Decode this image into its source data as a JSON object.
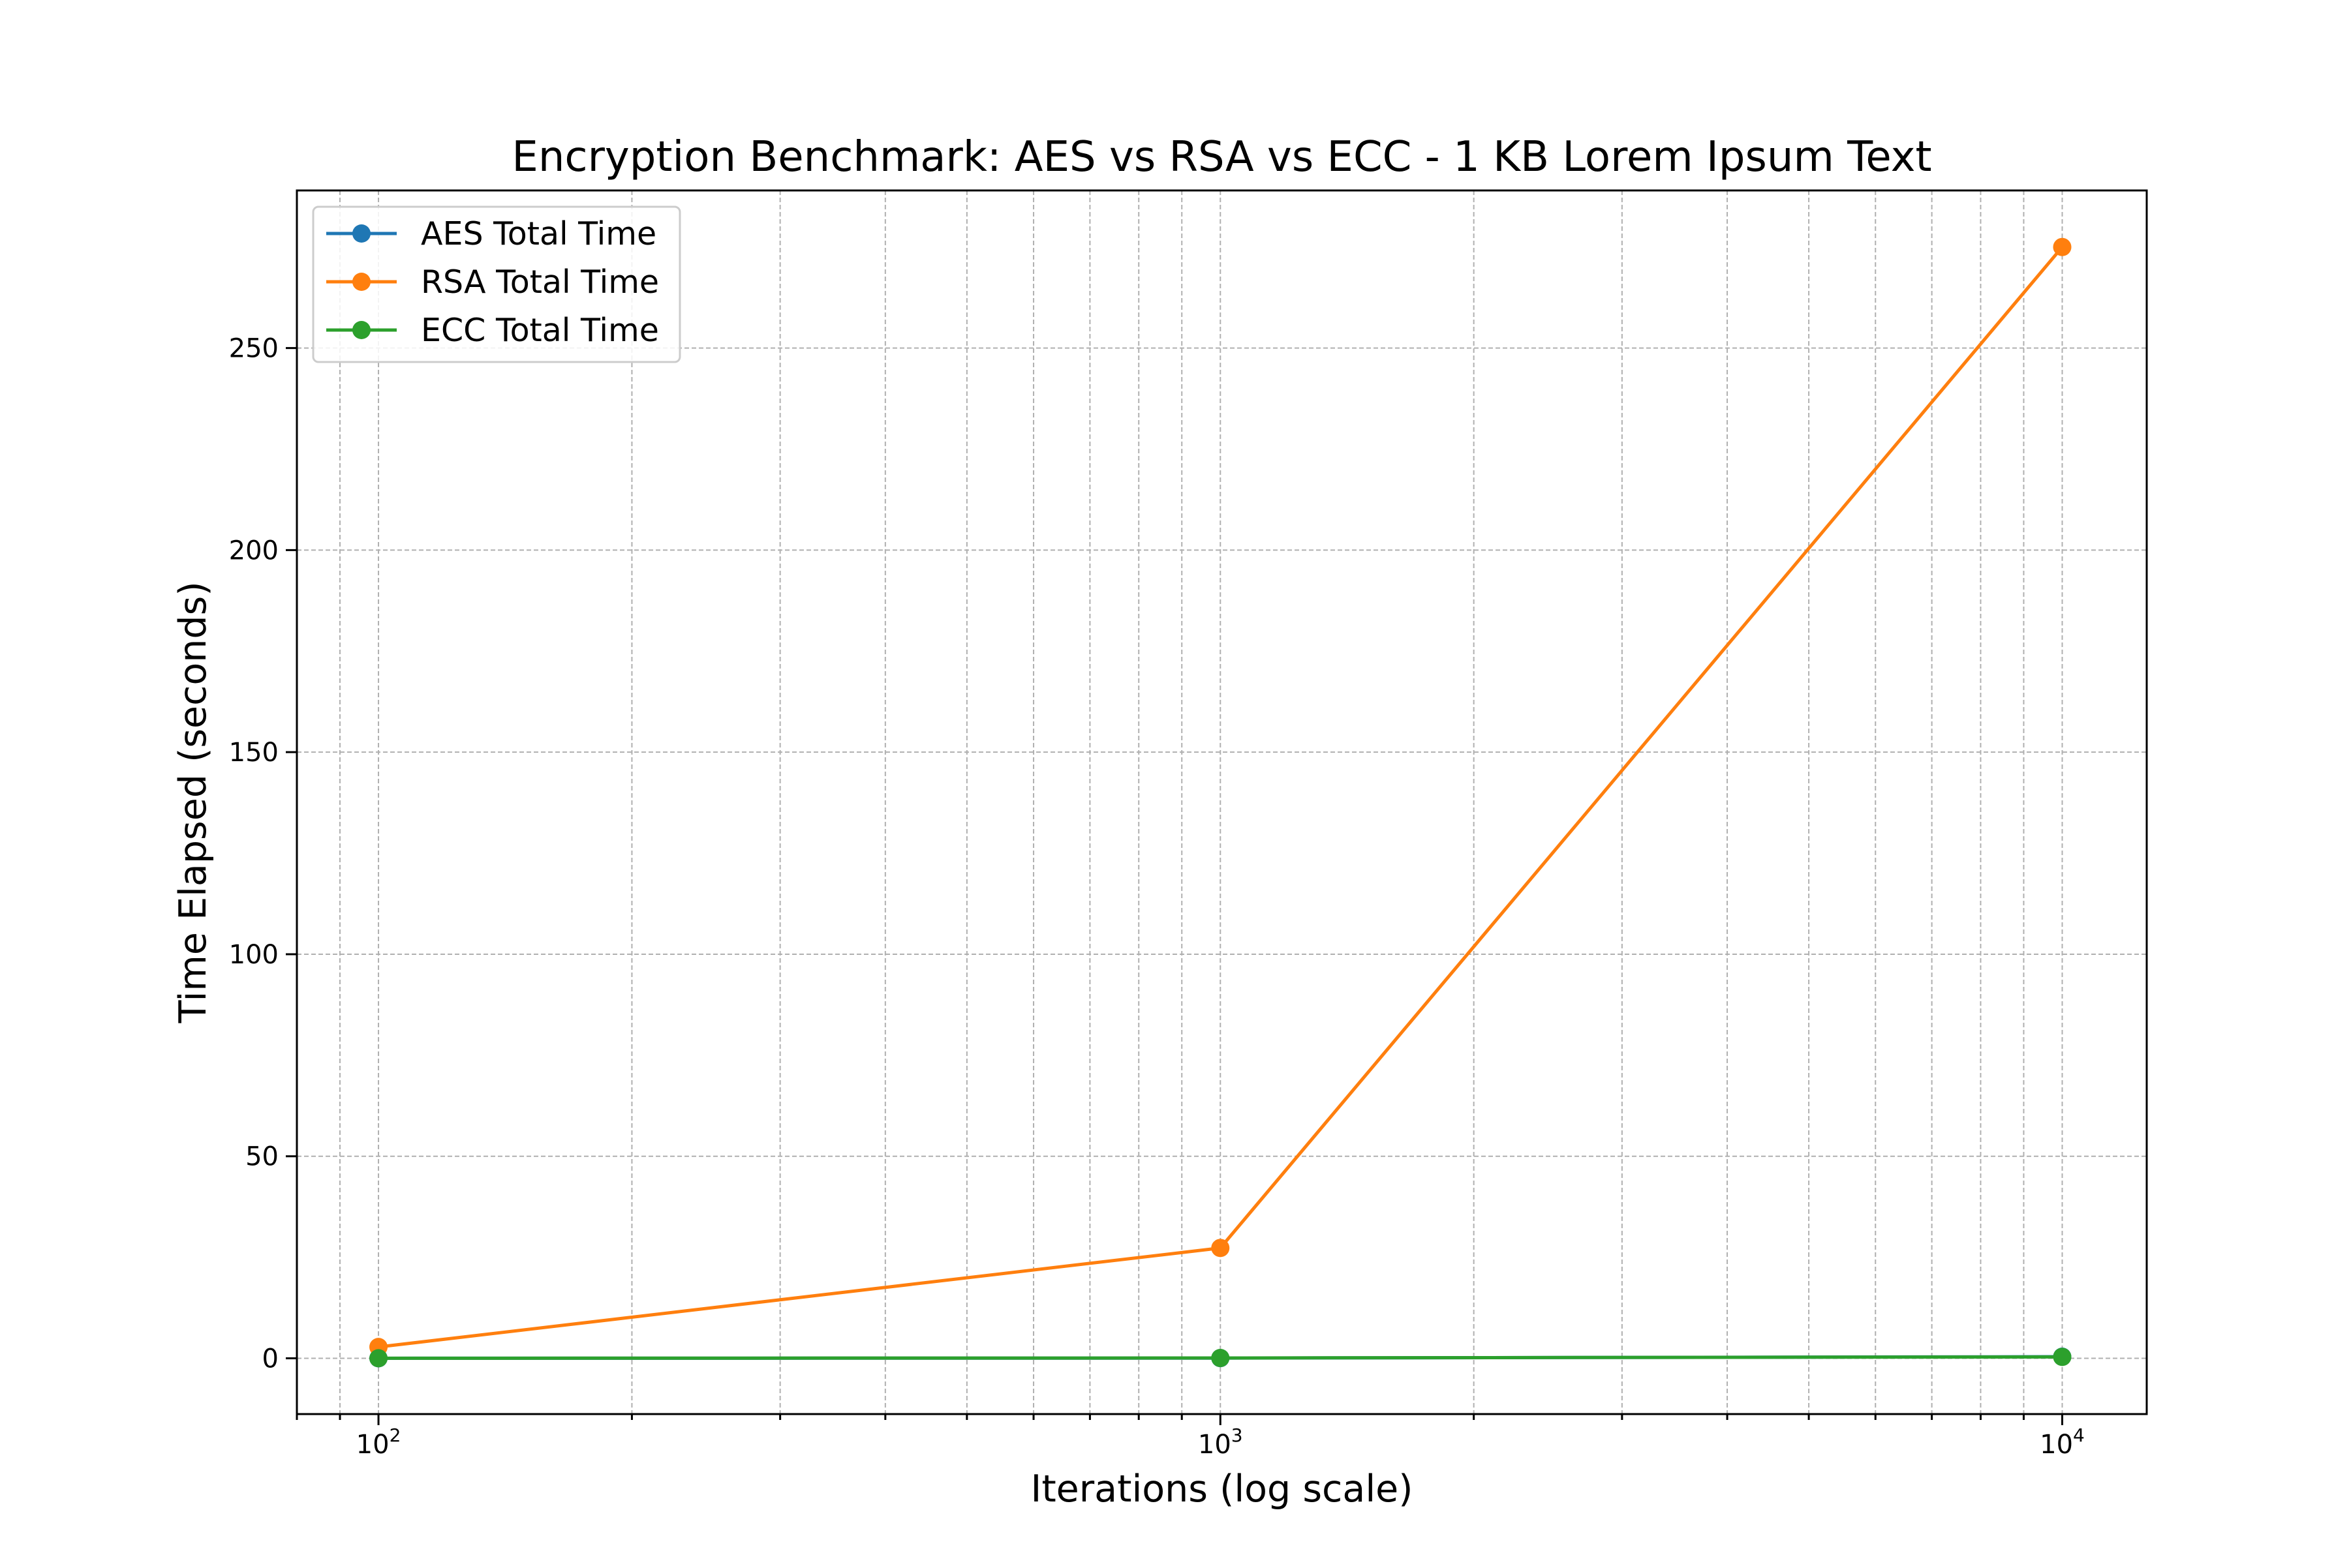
{
  "chart_data": {
    "type": "line",
    "title": "Encryption Benchmark: AES vs RSA vs ECC - 1 KB Lorem Ipsum Text",
    "xlabel": "Iterations (log scale)",
    "ylabel": "Time Elapsed (seconds)",
    "x_scale": "log",
    "x": [
      100,
      1000,
      10000
    ],
    "x_tick_labels": [
      {
        "value": 100,
        "base": "10",
        "exp": "2"
      },
      {
        "value": 1000,
        "base": "10",
        "exp": "3"
      },
      {
        "value": 10000,
        "base": "10",
        "exp": "4"
      }
    ],
    "xlim": [
      80,
      12600
    ],
    "ylim": [
      -13.8,
      289
    ],
    "y_ticks": [
      0,
      50,
      100,
      150,
      200,
      250
    ],
    "grid": true,
    "legend_position": "upper left",
    "series": [
      {
        "name": "AES Total Time",
        "color": "#1f77b4",
        "values": [
          0.01,
          0.05,
          0.4
        ]
      },
      {
        "name": "RSA Total Time",
        "color": "#ff7f0e",
        "values": [
          2.8,
          27.3,
          275
        ]
      },
      {
        "name": "ECC Total Time",
        "color": "#2ca02c",
        "values": [
          0.02,
          0.08,
          0.35
        ]
      }
    ]
  }
}
